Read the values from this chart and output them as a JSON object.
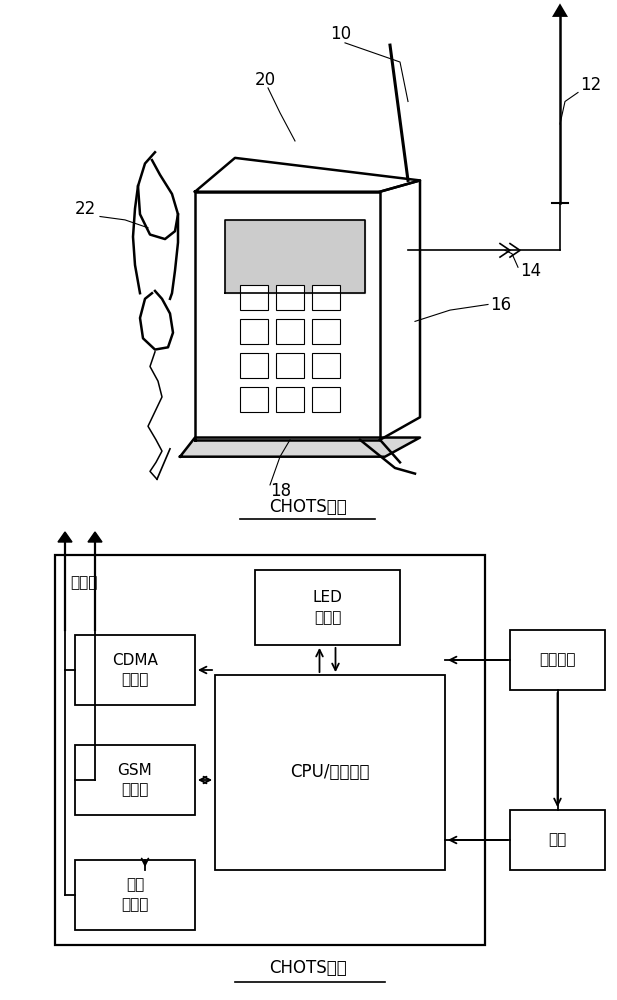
{
  "bg_color": "#ffffff",
  "title1": "CHOTS电话",
  "title2": "CHOTS框图",
  "circuit_label": "电路板",
  "cpu_label": "CPU/切换硬件",
  "led_label": "LED\n显示器",
  "cdma_label": "CDMA\n检测器",
  "gsm_label": "GSM\n检测器",
  "sat_label": "卫星\n检测器",
  "pk_label": "电话按键",
  "mob_label": "手机",
  "label_10": "10",
  "label_12": "12",
  "label_14": "14",
  "label_16": "16",
  "label_18": "18",
  "label_20": "20",
  "label_22": "22"
}
